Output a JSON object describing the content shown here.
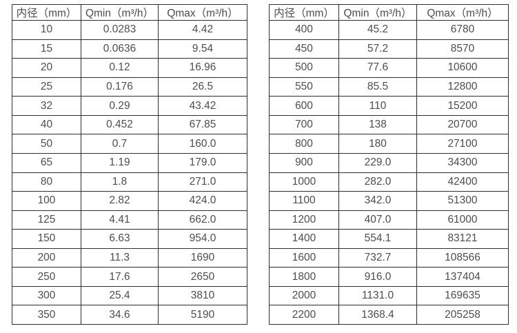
{
  "page": {
    "background_color": "#ffffff",
    "border_color": "#2e2e2e",
    "text_color": "#4d4d4d"
  },
  "tables": [
    {
      "name": "flow-table-small-diameters",
      "headers": [
        "内径（mm）",
        "Qmin（m³/h）",
        "Qmax（m³/h）"
      ],
      "rows": [
        [
          "10",
          "0.0283",
          "4.42"
        ],
        [
          "15",
          "0.0636",
          "9.54"
        ],
        [
          "20",
          "0.12",
          "16.96"
        ],
        [
          "25",
          "0.176",
          "26.5"
        ],
        [
          "32",
          "0.29",
          "43.42"
        ],
        [
          "40",
          "0.452",
          "67.85"
        ],
        [
          "50",
          "0.7",
          "160.0"
        ],
        [
          "65",
          "1.19",
          "179.0"
        ],
        [
          "80",
          "1.8",
          "271.0"
        ],
        [
          "100",
          "2.82",
          "424.0"
        ],
        [
          "125",
          "4.41",
          "662.0"
        ],
        [
          "150",
          "6.63",
          "954.0"
        ],
        [
          "200",
          "11.3",
          "1690"
        ],
        [
          "250",
          "17.6",
          "2650"
        ],
        [
          "300",
          "25.4",
          "3810"
        ],
        [
          "350",
          "34.6",
          "5190"
        ]
      ]
    },
    {
      "name": "flow-table-large-diameters",
      "headers": [
        "内径（mm）",
        "Qmin（m³/h）",
        "Qmax（m³/h）"
      ],
      "rows": [
        [
          "400",
          "45.2",
          "6780"
        ],
        [
          "450",
          "57.2",
          "8570"
        ],
        [
          "500",
          "77.6",
          "10600"
        ],
        [
          "550",
          "85.5",
          "12800"
        ],
        [
          "600",
          "110",
          "15200"
        ],
        [
          "700",
          "138",
          "20700"
        ],
        [
          "800",
          "180",
          "27100"
        ],
        [
          "900",
          "229.0",
          "34300"
        ],
        [
          "1000",
          "282.0",
          "42400"
        ],
        [
          "1100",
          "342.0",
          "51300"
        ],
        [
          "1200",
          "407.0",
          "61000"
        ],
        [
          "1400",
          "554.1",
          "83121"
        ],
        [
          "1600",
          "732.7",
          "108566"
        ],
        [
          "1800",
          "916.0",
          "137404"
        ],
        [
          "2000",
          "1131.0",
          "169635"
        ],
        [
          "2200",
          "1368.4",
          "205258"
        ]
      ]
    }
  ]
}
